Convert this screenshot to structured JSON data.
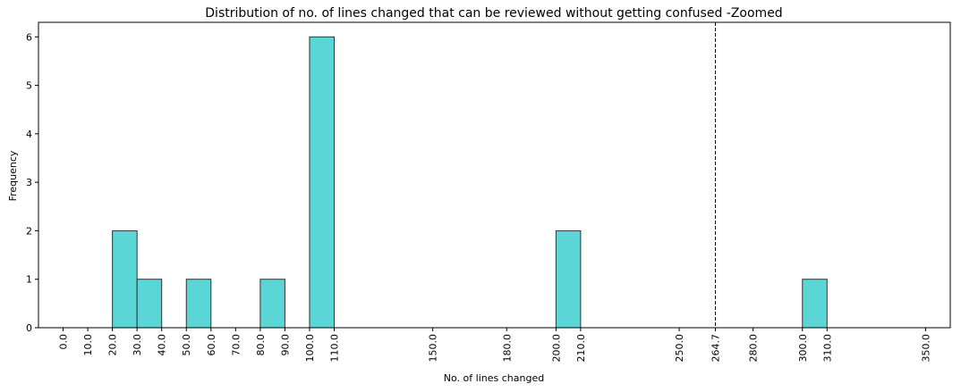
{
  "chart_data": {
    "type": "bar",
    "title": "Distribution of no. of lines changed that can be reviewed without getting confused -Zoomed",
    "xlabel": "No. of lines changed",
    "ylabel": "Frequency",
    "xlim": [
      -10,
      360
    ],
    "ylim": [
      0,
      6.3
    ],
    "x_ticks": [
      0.0,
      10.0,
      20.0,
      30.0,
      40.0,
      50.0,
      60.0,
      70.0,
      80.0,
      90.0,
      100.0,
      110.0,
      150.0,
      180.0,
      200.0,
      210.0,
      250.0,
      264.7,
      280.0,
      300.0,
      310.0,
      350.0
    ],
    "x_tick_labels": [
      "0.0",
      "10.0",
      "20.0",
      "30.0",
      "40.0",
      "50.0",
      "60.0",
      "70.0",
      "80.0",
      "90.0",
      "100.0",
      "110.0",
      "150.0",
      "180.0",
      "200.0",
      "210.0",
      "250.0",
      "264.7",
      "280.0",
      "300.0",
      "310.0",
      "350.0"
    ],
    "y_ticks": [
      0,
      1,
      2,
      3,
      4,
      5,
      6
    ],
    "bins": [
      {
        "start": 20,
        "end": 30,
        "count": 2
      },
      {
        "start": 30,
        "end": 40,
        "count": 1
      },
      {
        "start": 50,
        "end": 60,
        "count": 1
      },
      {
        "start": 80,
        "end": 90,
        "count": 1
      },
      {
        "start": 100,
        "end": 110,
        "count": 6
      },
      {
        "start": 200,
        "end": 210,
        "count": 2
      },
      {
        "start": 300,
        "end": 310,
        "count": 1
      }
    ],
    "reference_line": {
      "x": 264.7,
      "style": "dashed",
      "color": "#000000"
    },
    "bar_color": "#5bd6d6",
    "bar_edge_color": "#333333",
    "grid": false,
    "legend": "none"
  }
}
